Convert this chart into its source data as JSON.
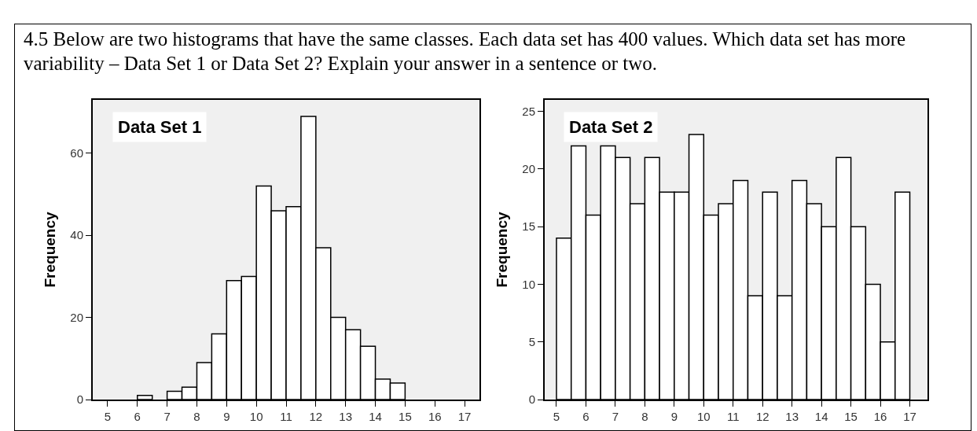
{
  "chart_data": [
    {
      "type": "histogram",
      "title": "4.5 Below are two histograms that have the same classes.  Each data set has 400 values.  Which data set has more variability – Data Set 1 or Data Set 2?  Explain your answer in a sentence or two.",
      "annotations": [
        "Data Set 1"
      ],
      "ylabel": "Frequency",
      "color": "#ffffff",
      "bins": [
        5,
        5.5,
        6,
        6.5,
        7,
        7.5,
        8,
        8.5,
        9,
        9.5,
        10,
        10.5,
        11,
        11.5,
        12,
        12.5,
        13,
        13.5,
        14,
        14.5,
        15,
        15.5,
        16,
        16.5,
        17
      ],
      "values": [
        0,
        0,
        1,
        0,
        2,
        3,
        9,
        16,
        29,
        30,
        52,
        46,
        47,
        69,
        37,
        20,
        17,
        13,
        5,
        4,
        0,
        0,
        0,
        0
      ],
      "xlim": [
        4.5,
        17.5
      ],
      "xticks": [
        5,
        6,
        7,
        8,
        9,
        10,
        11,
        12,
        13,
        14,
        15,
        16,
        17
      ],
      "ylim": [
        0,
        73
      ],
      "yticks": [
        0,
        20,
        40,
        60
      ],
      "grid": false
    },
    {
      "type": "histogram",
      "annotations": [
        "Data Set 2"
      ],
      "ylabel": "Frequency",
      "color": "#ffffff",
      "bins": [
        5,
        5.5,
        6,
        6.5,
        7,
        7.5,
        8,
        8.5,
        9,
        9.5,
        10,
        10.5,
        11,
        11.5,
        12,
        12.5,
        13,
        13.5,
        14,
        14.5,
        15,
        15.5,
        16,
        16.5,
        17
      ],
      "values": [
        14,
        22,
        16,
        22,
        21,
        17,
        21,
        18,
        18,
        23,
        16,
        17,
        19,
        9,
        18,
        9,
        19,
        17,
        15,
        21,
        15,
        10,
        5,
        18
      ],
      "xlim": [
        4.6,
        17.6
      ],
      "xticks": [
        5,
        6,
        7,
        8,
        9,
        10,
        11,
        12,
        13,
        14,
        15,
        16,
        17
      ],
      "ylim": [
        0,
        26
      ],
      "yticks": [
        0,
        5,
        10,
        15,
        20,
        25
      ],
      "grid": false
    }
  ]
}
